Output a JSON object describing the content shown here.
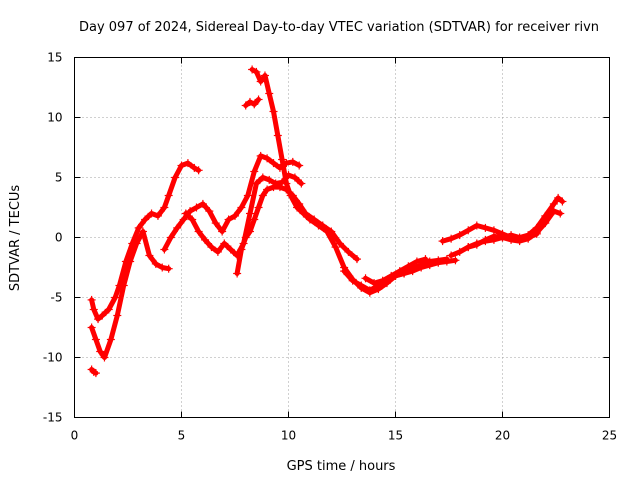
{
  "chart_data": {
    "type": "scatter",
    "title": "Day 097 of 2024, Sidereal Day-to-day VTEC variation (SDTVAR) for receiver rivn",
    "xlabel": "GPS time / hours",
    "ylabel": "SDTVAR / TECUs",
    "xlim": [
      0,
      25
    ],
    "ylim": [
      -15,
      15
    ],
    "xticks": [
      0,
      5,
      10,
      15,
      20,
      25
    ],
    "yticks": [
      -15,
      -10,
      -5,
      0,
      5,
      10,
      15
    ],
    "xtick_labels": [
      "0",
      "5",
      "10",
      "15",
      "20",
      "25"
    ],
    "ytick_labels": [
      "-15",
      "-10",
      "-5",
      "0",
      "5",
      "10",
      "15"
    ],
    "grid": true,
    "marker": "+",
    "color": "#ff0000",
    "series": [
      {
        "name": "track-1",
        "x": [
          0.8,
          0.9,
          1.1,
          1.3,
          1.6,
          1.9,
          2.1,
          2.4,
          2.7,
          3.0,
          3.3,
          3.6,
          3.9,
          4.2,
          4.4,
          4.7,
          5.0,
          5.3,
          5.6,
          5.8
        ],
        "y": [
          -5.2,
          -6.0,
          -6.8,
          -6.5,
          -6.0,
          -5.0,
          -4.0,
          -2.0,
          -0.5,
          0.8,
          1.5,
          2.0,
          1.8,
          2.5,
          3.5,
          5.0,
          6.0,
          6.2,
          5.8,
          5.6
        ]
      },
      {
        "name": "track-2",
        "x": [
          0.8,
          1.0,
          1.2,
          1.4,
          1.7,
          2.0,
          2.3,
          2.6,
          2.9,
          3.2,
          3.5,
          3.8,
          4.1,
          4.4
        ],
        "y": [
          -7.5,
          -8.5,
          -9.5,
          -10.0,
          -8.5,
          -6.5,
          -4.0,
          -2.0,
          -0.5,
          0.5,
          -1.5,
          -2.2,
          -2.5,
          -2.6
        ]
      },
      {
        "name": "track-3",
        "x": [
          0.8,
          0.9,
          1.0
        ],
        "y": [
          -11.0,
          -11.2,
          -11.3
        ]
      },
      {
        "name": "track-4",
        "x": [
          4.2,
          4.5,
          4.8,
          5.1,
          5.4,
          5.7,
          6.0,
          6.3,
          6.6,
          6.9,
          7.2,
          7.5,
          7.8,
          8.1,
          8.4,
          8.7,
          9.0,
          9.3,
          9.6,
          9.9,
          10.2,
          10.5
        ],
        "y": [
          -1.0,
          0.0,
          0.8,
          1.5,
          2.2,
          2.5,
          2.8,
          2.2,
          1.2,
          0.5,
          1.5,
          1.8,
          2.5,
          3.5,
          5.5,
          6.8,
          6.6,
          6.2,
          5.8,
          6.2,
          6.3,
          6.0
        ]
      },
      {
        "name": "track-5",
        "x": [
          5.2,
          5.5,
          5.8,
          6.1,
          6.4,
          6.7,
          7.0,
          7.3,
          7.6,
          7.9,
          8.2,
          8.5,
          8.8,
          9.1,
          9.4,
          9.7,
          10.0,
          10.3,
          10.6
        ],
        "y": [
          2.0,
          1.5,
          0.5,
          -0.2,
          -0.8,
          -1.2,
          -0.5,
          -1.0,
          -1.5,
          -0.5,
          2.0,
          4.5,
          5.0,
          4.8,
          4.5,
          4.6,
          5.2,
          5.0,
          4.5
        ]
      },
      {
        "name": "track-6",
        "x": [
          7.6,
          7.8,
          8.0,
          8.2,
          8.4,
          8.6,
          8.8,
          9.0,
          9.3,
          9.6,
          9.9,
          10.2,
          10.5,
          10.8,
          11.2,
          11.6,
          12.0,
          12.4,
          12.8,
          13.2
        ],
        "y": [
          -3.0,
          -1.0,
          0.0,
          0.5,
          1.5,
          2.5,
          3.5,
          4.0,
          4.2,
          4.2,
          4.0,
          3.5,
          2.8,
          2.0,
          1.5,
          1.0,
          0.5,
          -0.5,
          -1.2,
          -1.8
        ]
      },
      {
        "name": "track-7",
        "x": [
          8.3,
          8.5,
          8.7,
          8.9,
          9.1,
          9.3,
          9.5,
          9.7,
          9.9,
          10.1,
          10.4,
          10.7,
          11.0,
          11.4,
          11.8,
          12.2,
          12.6,
          13.0,
          13.4,
          13.8,
          14.2,
          14.6,
          15.0,
          15.4,
          15.8,
          16.2,
          16.6,
          17.0,
          17.4,
          17.8
        ],
        "y": [
          14.0,
          13.8,
          13.0,
          13.5,
          12.0,
          10.5,
          8.5,
          6.5,
          4.5,
          3.5,
          2.5,
          2.0,
          1.5,
          1.0,
          0.5,
          -0.8,
          -2.5,
          -3.5,
          -4.2,
          -4.6,
          -4.3,
          -3.8,
          -3.2,
          -3.0,
          -2.8,
          -2.5,
          -2.3,
          -2.1,
          -2.0,
          -1.9
        ]
      },
      {
        "name": "track-8",
        "x": [
          8.0,
          8.2,
          8.4,
          8.6
        ],
        "y": [
          11.0,
          11.3,
          11.1,
          11.5
        ]
      },
      {
        "name": "track-9",
        "x": [
          12.6,
          13.0,
          13.4,
          13.8,
          14.2,
          14.6,
          15.0,
          15.4,
          15.8,
          16.2,
          16.6,
          17.0,
          17.4
        ],
        "y": [
          -2.8,
          -3.6,
          -4.0,
          -4.4,
          -4.0,
          -3.6,
          -3.2,
          -3.0,
          -2.6,
          -2.3,
          -2.0,
          -1.9,
          -1.8
        ]
      },
      {
        "name": "track-10",
        "x": [
          13.6,
          14.0,
          14.4,
          14.8,
          15.2,
          15.6,
          16.0,
          16.4
        ],
        "y": [
          -3.4,
          -3.8,
          -3.6,
          -3.2,
          -2.8,
          -2.4,
          -2.0,
          -1.8
        ]
      },
      {
        "name": "track-11",
        "x": [
          17.2,
          17.6,
          18.0,
          18.4,
          18.8,
          19.2,
          19.6,
          20.0,
          20.4,
          20.8,
          21.2,
          21.6
        ],
        "y": [
          -0.3,
          -0.1,
          0.2,
          0.6,
          1.0,
          0.8,
          0.6,
          0.3,
          0.0,
          -0.2,
          0.0,
          0.3
        ]
      },
      {
        "name": "track-12",
        "x": [
          17.6,
          18.0,
          18.4,
          18.8,
          19.2,
          19.6,
          20.0,
          20.4,
          20.8,
          21.2,
          21.6,
          22.0,
          22.4,
          22.6,
          22.8
        ],
        "y": [
          -1.5,
          -1.2,
          -0.8,
          -0.5,
          -0.3,
          -0.2,
          0.0,
          0.2,
          0.0,
          0.2,
          0.8,
          1.8,
          2.8,
          3.3,
          3.0
        ]
      },
      {
        "name": "track-13",
        "x": [
          18.4,
          18.8,
          19.2,
          19.6,
          20.0,
          20.4,
          20.8,
          21.2,
          21.6,
          22.0,
          22.4,
          22.7
        ],
        "y": [
          -0.8,
          -0.6,
          -0.2,
          0.1,
          0.0,
          -0.2,
          -0.3,
          -0.1,
          0.4,
          1.2,
          2.2,
          2.0
        ]
      }
    ]
  }
}
